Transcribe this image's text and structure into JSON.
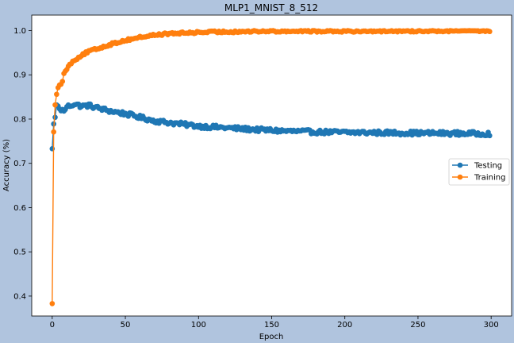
{
  "chart_data": {
    "type": "scatter",
    "title": "MLP1_MNIST_8_512",
    "xlabel": "Epoch",
    "ylabel": "Accuracy (%)",
    "xlim": [
      -14,
      314
    ],
    "ylim": [
      0.355,
      1.035
    ],
    "xticks": [
      0,
      50,
      100,
      150,
      200,
      250,
      300
    ],
    "yticks": [
      0.4,
      0.5,
      0.6,
      0.7,
      0.8,
      0.9,
      1.0
    ],
    "xtick_labels": [
      "0",
      "50",
      "100",
      "150",
      "200",
      "250",
      "300"
    ],
    "ytick_labels": [
      "0.4",
      "0.5",
      "0.6",
      "0.7",
      "0.8",
      "0.9",
      "1.0"
    ],
    "grid": false,
    "legend_position": "center-right",
    "epochs_range": [
      0,
      299
    ],
    "series": [
      {
        "name": "Testing",
        "color": "#1f77b4",
        "marker": "circle-with-line",
        "anchors": [
          [
            0,
            0.733
          ],
          [
            1,
            0.789
          ],
          [
            2,
            0.804
          ],
          [
            3,
            0.832
          ],
          [
            5,
            0.823
          ],
          [
            8,
            0.818
          ],
          [
            10,
            0.828
          ],
          [
            15,
            0.834
          ],
          [
            20,
            0.829
          ],
          [
            25,
            0.831
          ],
          [
            30,
            0.826
          ],
          [
            40,
            0.818
          ],
          [
            50,
            0.812
          ],
          [
            60,
            0.804
          ],
          [
            70,
            0.796
          ],
          [
            80,
            0.792
          ],
          [
            90,
            0.788
          ],
          [
            100,
            0.784
          ],
          [
            120,
            0.78
          ],
          [
            140,
            0.776
          ],
          [
            160,
            0.773
          ],
          [
            180,
            0.771
          ],
          [
            200,
            0.77
          ],
          [
            230,
            0.769
          ],
          [
            260,
            0.768
          ],
          [
            299,
            0.767
          ]
        ],
        "noise": 0.0045
      },
      {
        "name": "Training",
        "color": "#ff7f0e",
        "marker": "circle-with-line",
        "anchors": [
          [
            0,
            0.383
          ],
          [
            1,
            0.771
          ],
          [
            2,
            0.832
          ],
          [
            3,
            0.856
          ],
          [
            4,
            0.871
          ],
          [
            5,
            0.877
          ],
          [
            7,
            0.885
          ],
          [
            8,
            0.903
          ],
          [
            10,
            0.912
          ],
          [
            12,
            0.924
          ],
          [
            15,
            0.933
          ],
          [
            20,
            0.944
          ],
          [
            25,
            0.953
          ],
          [
            30,
            0.958
          ],
          [
            40,
            0.969
          ],
          [
            50,
            0.978
          ],
          [
            60,
            0.985
          ],
          [
            70,
            0.99
          ],
          [
            80,
            0.993
          ],
          [
            100,
            0.996
          ],
          [
            130,
            0.998
          ],
          [
            160,
            0.999
          ],
          [
            200,
            0.999
          ],
          [
            299,
            1.0
          ]
        ],
        "noise": 0.0025
      }
    ]
  }
}
